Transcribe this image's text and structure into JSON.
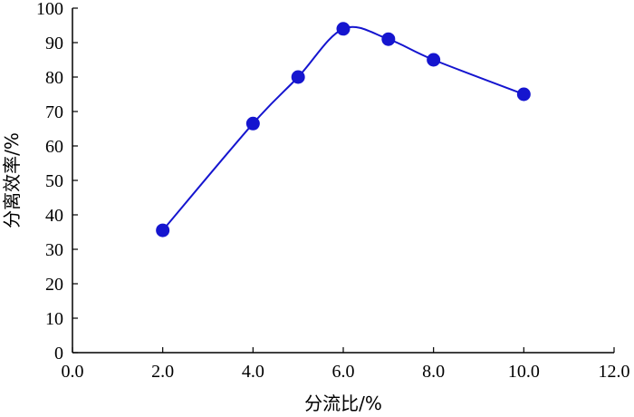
{
  "chart_data": {
    "type": "line",
    "xlabel": "分流比/%",
    "ylabel": "分离效率/%",
    "xlim": [
      0,
      12
    ],
    "ylim": [
      0,
      100
    ],
    "x_ticks": [
      "0.0",
      "2.0",
      "4.0",
      "6.0",
      "8.0",
      "10.0",
      "12.0"
    ],
    "y_ticks": [
      "0",
      "10",
      "20",
      "30",
      "40",
      "50",
      "60",
      "70",
      "80",
      "90",
      "100"
    ],
    "x_tick_values": [
      0,
      2,
      4,
      6,
      8,
      10,
      12
    ],
    "y_tick_values": [
      0,
      10,
      20,
      30,
      40,
      50,
      60,
      70,
      80,
      90,
      100
    ],
    "grid": false,
    "smooth": true,
    "series": [
      {
        "color": "#1515cf",
        "x": [
          2.0,
          4.0,
          5.0,
          6.0,
          7.0,
          8.0,
          10.0
        ],
        "values": [
          35.5,
          66.5,
          80.0,
          94.0,
          91.0,
          85.0,
          75.0
        ]
      }
    ]
  }
}
